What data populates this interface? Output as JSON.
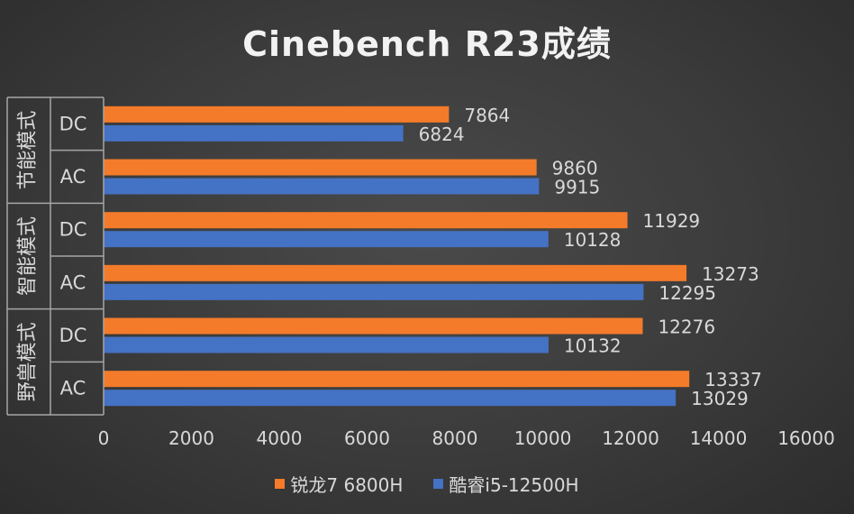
{
  "colors": {
    "background": "#3b3b3b",
    "series_amd": "#f47b2a",
    "series_intel": "#4472c4",
    "text": "#d9d9d9",
    "axis_line": "#a6a6a6"
  },
  "chart_data": {
    "type": "bar",
    "orientation": "horizontal",
    "title": "Cinebench R23成绩",
    "xlim": [
      0,
      16000
    ],
    "x_ticks": [
      0,
      2000,
      4000,
      6000,
      8000,
      10000,
      12000,
      14000,
      16000
    ],
    "grid": false,
    "legend_position": "bottom",
    "groups": [
      {
        "label": "节能模式",
        "categories": [
          "DC",
          "AC"
        ]
      },
      {
        "label": "智能模式",
        "categories": [
          "DC",
          "AC"
        ]
      },
      {
        "label": "野兽模式",
        "categories": [
          "DC",
          "AC"
        ]
      }
    ],
    "series": [
      {
        "name": "锐龙7 6800H",
        "values": [
          7864,
          9860,
          11929,
          13273,
          12276,
          13337
        ]
      },
      {
        "name": "酷睿i5-12500H",
        "values": [
          6824,
          9915,
          10128,
          12295,
          10132,
          13029
        ]
      }
    ]
  }
}
